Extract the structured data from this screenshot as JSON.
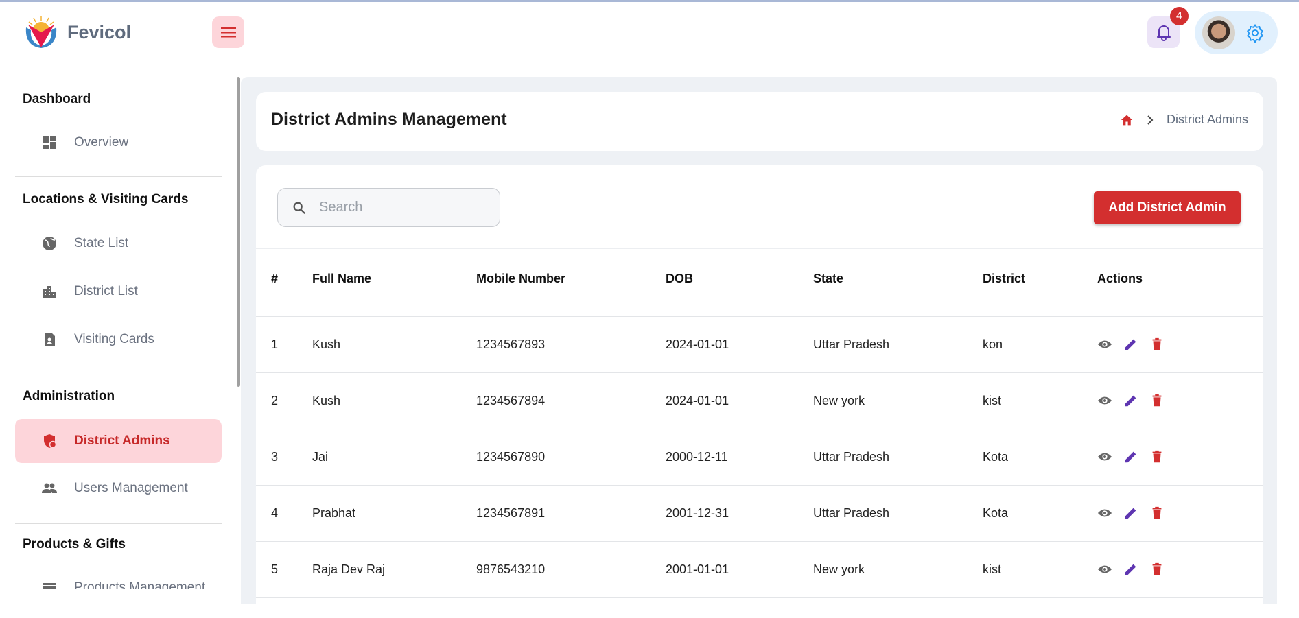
{
  "brand": {
    "name": "Fevicol"
  },
  "header": {
    "notification_count": "4"
  },
  "sidebar": {
    "sections": [
      {
        "title": "Dashboard",
        "items": [
          {
            "label": "Overview",
            "icon": "dashboard-icon"
          }
        ]
      },
      {
        "title": "Locations & Visiting Cards",
        "items": [
          {
            "label": "State List",
            "icon": "globe-icon"
          },
          {
            "label": "District List",
            "icon": "building-icon"
          },
          {
            "label": "Visiting Cards",
            "icon": "contact-card-icon"
          }
        ]
      },
      {
        "title": "Administration",
        "items": [
          {
            "label": "District Admins",
            "icon": "admin-shield-icon",
            "active": true
          },
          {
            "label": "Users Management",
            "icon": "people-icon"
          }
        ]
      },
      {
        "title": "Products & Gifts",
        "items": [
          {
            "label": "Products Management",
            "icon": "list-icon"
          }
        ]
      }
    ]
  },
  "page": {
    "title": "District Admins Management",
    "breadcrumb": "District Admins"
  },
  "toolbar": {
    "search_placeholder": "Search",
    "add_label": "Add District Admin"
  },
  "table": {
    "headers": [
      "#",
      "Full Name",
      "Mobile Number",
      "DOB",
      "State",
      "District",
      "Actions"
    ],
    "rows": [
      [
        "1",
        "Kush",
        "1234567893",
        "2024-01-01",
        "Uttar Pradesh",
        "kon"
      ],
      [
        "2",
        "Kush",
        "1234567894",
        "2024-01-01",
        "New york",
        "kist"
      ],
      [
        "3",
        "Jai",
        "1234567890",
        "2000-12-11",
        "Uttar Pradesh",
        "Kota"
      ],
      [
        "4",
        "Prabhat",
        "1234567891",
        "2001-12-31",
        "Uttar Pradesh",
        "Kota"
      ],
      [
        "5",
        "Raja Dev Raj",
        "9876543210",
        "2001-01-01",
        "New york",
        "kist"
      ]
    ]
  },
  "colors": {
    "accent": "#d32f2f",
    "edit": "#5e35b1",
    "view": "#666666",
    "settings": "#2196f3"
  }
}
